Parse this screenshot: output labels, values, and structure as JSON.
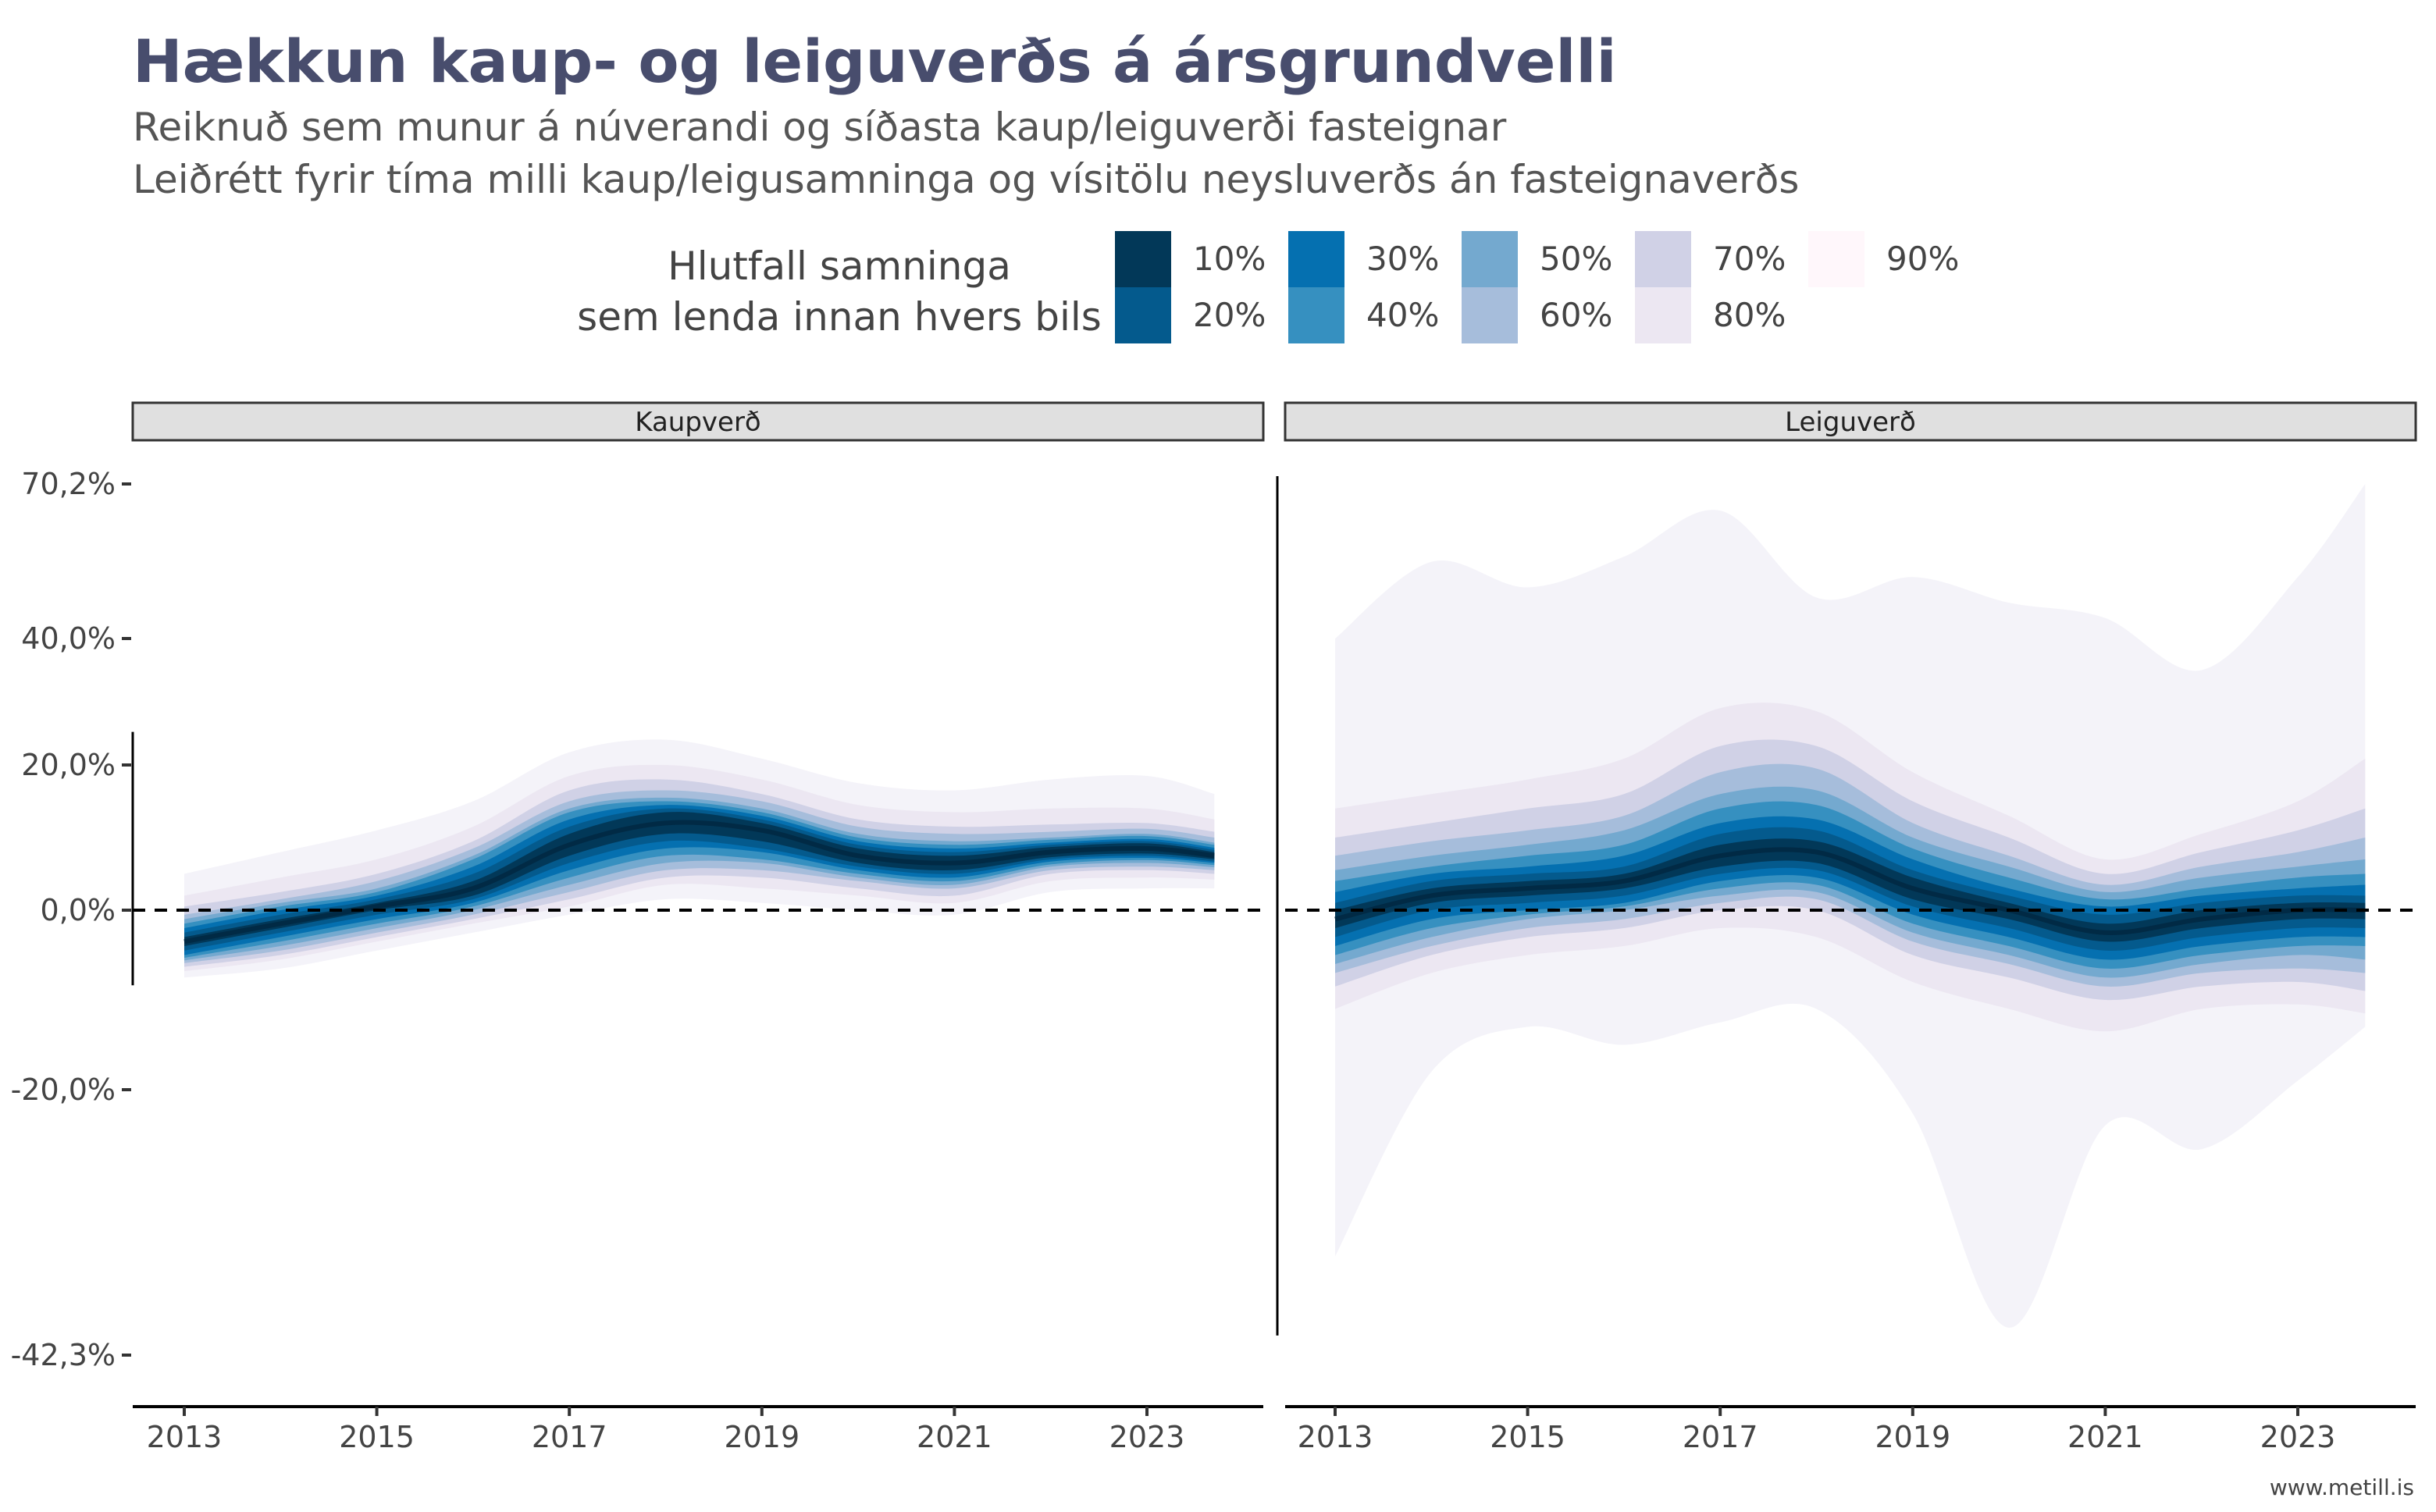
{
  "title": "Hækkun kaup- og leiguverðs á ársgrundvelli",
  "subtitle_lines": [
    "Reiknuð sem munur á núverandi og síðasta kaup/leiguverði fasteignar",
    "Leiðrétt fyrir tíma milli kaup/leigusamninga og vísitölu neysluverðs án fasteignaverðs"
  ],
  "legend": {
    "title_lines": [
      "Hlutfall samninga",
      "sem lenda innan hvers bils"
    ],
    "position": "top",
    "items": [
      {
        "label": "10%",
        "color": "#023858"
      },
      {
        "label": "20%",
        "color": "#045a8d"
      },
      {
        "label": "30%",
        "color": "#0570b0"
      },
      {
        "label": "40%",
        "color": "#3690c0"
      },
      {
        "label": "50%",
        "color": "#74a9cf"
      },
      {
        "label": "60%",
        "color": "#a6bddb"
      },
      {
        "label": "70%",
        "color": "#d0d1e6"
      },
      {
        "label": "80%",
        "color": "#ece7f2"
      },
      {
        "label": "90%",
        "color": "#fff7fb"
      }
    ]
  },
  "source": "www.metill.is",
  "colors": {
    "title": "#484d6d",
    "text": "#444444",
    "strip_bg": "#e0e0e0",
    "zero_line": "#000000"
  },
  "chart_data": {
    "type": "area",
    "grid": false,
    "y_scale": "pseudo-log",
    "y_ticks": [
      70.2,
      40.0,
      20.0,
      0.0,
      -20.0,
      -42.3
    ],
    "y_tick_labels": [
      "70,2%",
      "40,0%",
      "20,0%",
      "0,0%",
      "-20,0%",
      "-42,3%"
    ],
    "y_range": [
      -42.3,
      70.2
    ],
    "x_ticks": [
      2013,
      2015,
      2017,
      2019,
      2021,
      2023
    ],
    "x_tick_labels": [
      "2013",
      "2015",
      "2017",
      "2019",
      "2021",
      "2023"
    ],
    "reference_line": {
      "y": 0,
      "style": "dashed"
    },
    "panels": [
      {
        "name": "Kaupverð",
        "x": [
          2013,
          2014,
          2015,
          2016,
          2017,
          2018,
          2019,
          2020,
          2021,
          2022,
          2023,
          2023.7
        ],
        "median": [
          -3.5,
          -1.5,
          0.5,
          3.0,
          9.0,
          12.0,
          11.0,
          7.5,
          6.5,
          8.0,
          8.5,
          7.5
        ],
        "bands": {
          "10%": {
            "lower": [
              -4.0,
              -2.0,
              0.0,
              2.0,
              7.5,
              10.5,
              9.5,
              6.5,
              5.5,
              7.3,
              7.8,
              7.0
            ],
            "upper": [
              -3.0,
              -1.0,
              1.0,
              4.0,
              10.5,
              13.5,
              12.0,
              8.5,
              7.5,
              8.7,
              9.2,
              8.0
            ]
          },
          "20%": {
            "lower": [
              -4.5,
              -2.5,
              -0.5,
              1.5,
              6.5,
              9.5,
              8.5,
              6.0,
              5.0,
              7.0,
              7.5,
              6.7
            ],
            "upper": [
              -2.5,
              -0.5,
              1.5,
              5.0,
              11.5,
              14.0,
              12.5,
              9.0,
              8.0,
              9.0,
              9.5,
              8.3
            ]
          },
          "30%": {
            "lower": [
              -5.0,
              -3.0,
              -1.0,
              1.0,
              5.5,
              8.5,
              8.0,
              5.5,
              4.5,
              6.7,
              7.2,
              6.5
            ],
            "upper": [
              -2.0,
              0.0,
              2.0,
              6.0,
              12.5,
              14.5,
              13.0,
              9.5,
              8.5,
              9.3,
              9.8,
              8.6
            ]
          },
          "40%": {
            "lower": [
              -5.3,
              -3.5,
              -1.5,
              0.5,
              4.5,
              7.5,
              7.0,
              5.0,
              4.0,
              6.3,
              6.9,
              6.2
            ],
            "upper": [
              -1.5,
              0.5,
              2.5,
              7.0,
              13.5,
              15.0,
              13.5,
              10.0,
              9.0,
              9.7,
              10.2,
              9.0
            ]
          },
          "50%": {
            "lower": [
              -5.6,
              -4.0,
              -2.0,
              0.0,
              3.5,
              6.5,
              6.5,
              4.5,
              3.5,
              6.0,
              6.5,
              5.9
            ],
            "upper": [
              -1.0,
              1.0,
              3.0,
              7.5,
              14.0,
              15.5,
              14.0,
              10.5,
              9.5,
              10.0,
              10.5,
              9.3
            ]
          },
          "60%": {
            "lower": [
              -5.9,
              -4.5,
              -2.5,
              -0.5,
              2.5,
              5.5,
              5.5,
              4.0,
              3.0,
              5.5,
              6.0,
              5.5
            ],
            "upper": [
              -0.5,
              1.5,
              4.0,
              8.5,
              15.0,
              16.5,
              15.0,
              11.5,
              10.5,
              10.8,
              11.2,
              10.0
            ]
          },
          "70%": {
            "lower": [
              -6.3,
              -5.0,
              -3.0,
              -1.0,
              1.5,
              4.5,
              4.5,
              3.0,
              2.0,
              5.0,
              5.5,
              5.0
            ],
            "upper": [
              0.5,
              2.5,
              5.0,
              9.5,
              16.5,
              18.0,
              16.0,
              12.5,
              11.5,
              11.8,
              12.0,
              10.8
            ]
          },
          "80%": {
            "lower": [
              -6.8,
              -5.5,
              -3.5,
              -1.5,
              0.5,
              3.5,
              3.0,
              2.0,
              1.0,
              4.0,
              4.5,
              4.2
            ],
            "upper": [
              2.0,
              4.5,
              7.0,
              11.5,
              18.5,
              20.0,
              18.0,
              14.5,
              13.5,
              14.0,
              14.0,
              12.5
            ]
          },
          "90%": {
            "lower": [
              -7.5,
              -6.5,
              -4.5,
              -2.5,
              -0.5,
              1.5,
              1.0,
              0.0,
              -0.5,
              2.5,
              3.0,
              3.0
            ],
            "upper": [
              5.0,
              8.0,
              11.0,
              15.0,
              22.0,
              24.0,
              21.0,
              17.5,
              16.5,
              18.0,
              18.5,
              16.0
            ]
          }
        }
      },
      {
        "name": "Leiguverð",
        "x": [
          2013,
          2014,
          2015,
          2016,
          2017,
          2018,
          2019,
          2020,
          2021,
          2022,
          2023,
          2023.7
        ],
        "median": [
          -1.0,
          2.0,
          3.0,
          4.0,
          7.5,
          8.0,
          3.0,
          0.0,
          -2.5,
          -1.0,
          0.0,
          0.0
        ],
        "bands": {
          "10%": {
            "lower": [
              -2.0,
              1.0,
              2.0,
              3.0,
              6.0,
              6.5,
              1.5,
              -1.0,
              -3.5,
              -2.0,
              -1.0,
              -1.0
            ],
            "upper": [
              0.0,
              3.0,
              4.0,
              5.0,
              9.0,
              9.5,
              4.5,
              1.0,
              -1.5,
              0.0,
              1.0,
              1.0
            ]
          },
          "20%": {
            "lower": [
              -3.0,
              0.0,
              1.0,
              2.0,
              5.0,
              5.5,
              0.5,
              -2.0,
              -4.5,
              -3.0,
              -2.0,
              -2.0
            ],
            "upper": [
              1.0,
              4.0,
              5.0,
              6.0,
              10.5,
              11.0,
              5.5,
              2.0,
              -0.5,
              1.0,
              2.0,
              2.0
            ]
          },
          "30%": {
            "lower": [
              -4.0,
              -1.0,
              0.0,
              1.0,
              4.0,
              4.5,
              -0.5,
              -3.0,
              -5.5,
              -4.0,
              -3.0,
              -3.0
            ],
            "upper": [
              2.5,
              5.0,
              6.0,
              7.5,
              12.0,
              12.5,
              7.0,
              3.0,
              0.5,
              2.0,
              3.0,
              3.5
            ]
          },
          "40%": {
            "lower": [
              -5.0,
              -2.0,
              -0.5,
              0.5,
              3.0,
              3.5,
              -1.5,
              -4.0,
              -6.5,
              -5.0,
              -4.0,
              -4.0
            ],
            "upper": [
              4.0,
              6.0,
              7.5,
              9.0,
              14.0,
              14.5,
              8.5,
              4.5,
              1.5,
              3.0,
              4.5,
              5.0
            ]
          },
          "50%": {
            "lower": [
              -6.0,
              -3.0,
              -1.0,
              0.0,
              2.0,
              2.5,
              -2.5,
              -5.0,
              -7.5,
              -6.0,
              -5.0,
              -5.5
            ],
            "upper": [
              5.5,
              7.5,
              9.0,
              11.0,
              16.0,
              16.5,
              10.0,
              6.0,
              2.5,
              4.5,
              6.0,
              7.0
            ]
          },
          "60%": {
            "lower": [
              -7.0,
              -4.0,
              -2.0,
              -1.0,
              1.0,
              1.5,
              -3.5,
              -6.0,
              -8.5,
              -7.0,
              -6.5,
              -7.0
            ],
            "upper": [
              7.5,
              9.5,
              11.0,
              13.0,
              19.0,
              19.5,
              12.0,
              7.5,
              3.5,
              6.0,
              8.0,
              10.0
            ]
          },
          "70%": {
            "lower": [
              -8.5,
              -5.0,
              -3.0,
              -2.0,
              0.0,
              0.0,
              -5.0,
              -7.5,
              -10.0,
              -8.5,
              -8.0,
              -9.0
            ],
            "upper": [
              10.0,
              12.0,
              14.0,
              16.0,
              23.0,
              23.0,
              15.0,
              10.0,
              5.0,
              8.0,
              11.0,
              14.0
            ]
          },
          "80%": {
            "lower": [
              -11.0,
              -7.0,
              -5.0,
              -4.0,
              -2.0,
              -3.0,
              -8.0,
              -11.0,
              -13.5,
              -11.0,
              -10.5,
              -11.5
            ],
            "upper": [
              14.0,
              16.0,
              18.0,
              21.0,
              29.0,
              28.5,
              19.0,
              13.0,
              7.0,
              10.5,
              15.0,
              21.0
            ]
          },
          "90%": {
            "lower": [
              -34.0,
              -18.0,
              -13.0,
              -15.0,
              -12.5,
              -11.0,
              -22.0,
              -40.0,
              -23.0,
              -25.0,
              -19.0,
              -13.0
            ],
            "upper": [
              40.0,
              55.0,
              50.0,
              56.0,
              65.0,
              48.0,
              52.0,
              47.0,
              44.0,
              35.0,
              52.0,
              70.2
            ]
          }
        }
      }
    ]
  }
}
